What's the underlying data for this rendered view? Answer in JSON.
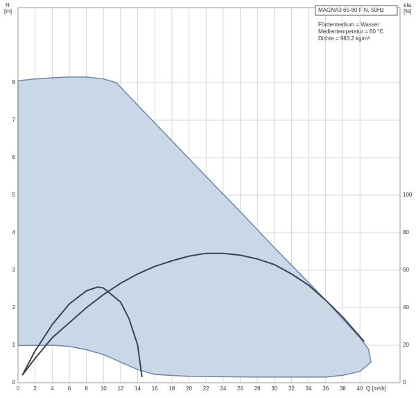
{
  "chart_data": {
    "type": "line",
    "y_label": [
      "H",
      "[m]"
    ],
    "y2_label": [
      "eta",
      "[%]"
    ],
    "x_label": "Q [m³/h]",
    "info": {
      "title": "MAGNA3 65-80 F N, 50Hz",
      "lines": [
        "Fördermedium = Wasser",
        "Medientemperatur = 60 °C",
        "Dichte = 983.2 kg/m³"
      ]
    },
    "xlim": [
      0,
      44.7
    ],
    "xticks": [
      0,
      2,
      4,
      6,
      8,
      10,
      12,
      14,
      16,
      18,
      20,
      22,
      24,
      26,
      28,
      30,
      32,
      34,
      36,
      38,
      40
    ],
    "ylim": [
      0,
      10
    ],
    "yticks": [
      0,
      1,
      2,
      3,
      4,
      5,
      6,
      7,
      8
    ],
    "y2lim": [
      0,
      200
    ],
    "y2ticks": [
      0,
      20,
      40,
      60,
      80,
      100
    ],
    "grid": true,
    "envelope": {
      "color": "#c9d7e6",
      "stroke": "#6f87a6",
      "upper": {
        "x": [
          0,
          2,
          4,
          6,
          8,
          10,
          11.5,
          14,
          18,
          22,
          26,
          30,
          34,
          36,
          38,
          40,
          41,
          41.3
        ],
        "values": [
          8.05,
          8.1,
          8.13,
          8.15,
          8.15,
          8.1,
          8.0,
          7.4,
          6.45,
          5.5,
          4.56,
          3.6,
          2.67,
          2.2,
          1.7,
          1.2,
          0.9,
          0.55
        ]
      },
      "lower": {
        "x": [
          0,
          4,
          6,
          8,
          10,
          12,
          14,
          16,
          20,
          28,
          36,
          38,
          40,
          41.3
        ],
        "values": [
          0.99,
          1.0,
          0.97,
          0.88,
          0.75,
          0.55,
          0.35,
          0.22,
          0.17,
          0.15,
          0.15,
          0.2,
          0.3,
          0.55
        ]
      }
    },
    "series": [
      {
        "color": "#3a4450",
        "axis": "y2",
        "x": [
          0.5,
          2,
          4,
          6,
          8,
          9.3,
          10,
          12,
          13,
          14,
          14.5
        ],
        "values": [
          4,
          17,
          31,
          42,
          49,
          51,
          50.5,
          43,
          34,
          20,
          3
        ]
      },
      {
        "color": "#3a4450",
        "axis": "y2",
        "x": [
          0.5,
          2,
          4,
          6,
          8,
          10,
          12,
          14,
          16,
          18,
          20,
          22,
          24,
          26,
          28,
          30,
          32,
          34,
          36,
          38,
          40.5
        ],
        "values": [
          4,
          13,
          24,
          32,
          40,
          47,
          53,
          58,
          62,
          65,
          67.5,
          69,
          69,
          68,
          66,
          63,
          58,
          52,
          44,
          35,
          22
        ]
      }
    ]
  }
}
